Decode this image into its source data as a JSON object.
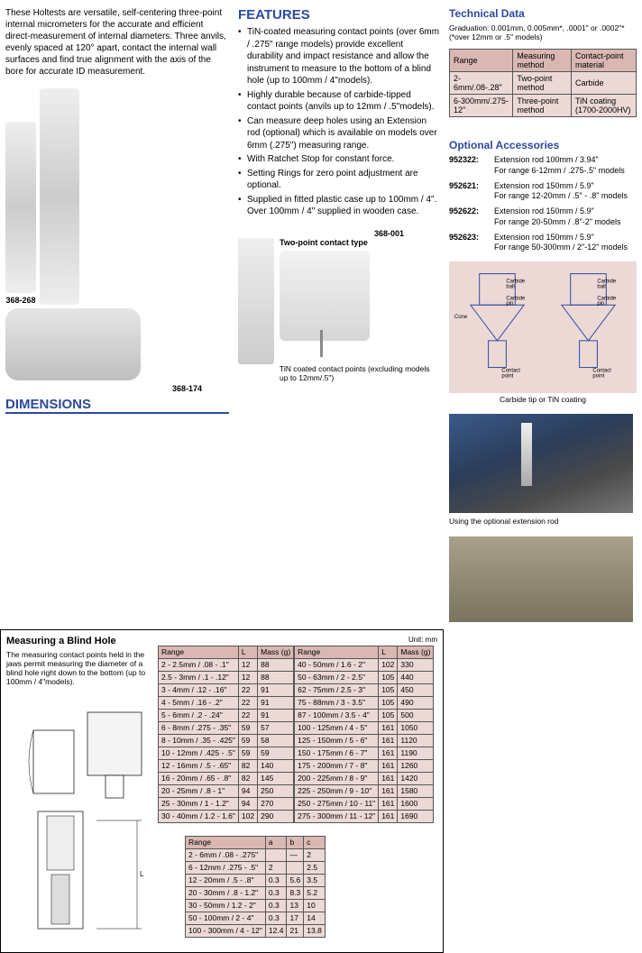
{
  "intro": "These Holtests are versatile, self-centering three-point internal micrometers for the accurate and efficient direct-measurement of internal diameters. Three anvils, evenly spaced at 120° apart, contact the internal wall surfaces and find true alignment with the axis of the bore for accurate ID measurement.",
  "labels": {
    "p1": "368-268",
    "p2": "368-174",
    "p3": "368-001",
    "tp": "Two-point contact type",
    "tin": "TiN coated contact points (excluding models up to 12mm/.5\")"
  },
  "features": {
    "hdr": "FEATURES",
    "items": [
      "TiN-coated measuring contact points (over 6mm / .275\" range models) provide excellent durability and impact resistance and allow the instrument to measure to the bottom of a blind hole (up to 100mm / 4\"models).",
      "Highly durable because of carbide-tipped contact points (anvils up to 12mm / .5\"models).",
      "Can measure deep holes using an Extension rod (optional) which is available on models over 6mm (.275\") measuring range.",
      "With Ratchet Stop for constant force.",
      "Setting Rings for zero point adjustment are optional.",
      "Supplied in fitted plastic case up to 100mm / 4\". Over 100mm / 4\" supplied in wooden case."
    ]
  },
  "dim": {
    "hdr": "DIMENSIONS",
    "title": "Measuring a Blind Hole",
    "desc": "The measuring contact points held in the jaws permit measuring the diameter of a blind hole right down to the bottom (up to 100mm / 4\"models).",
    "unit": "Unit: mm"
  },
  "table1": {
    "cols": [
      "Range",
      "L",
      "Mass (g)"
    ],
    "rowsL": [
      [
        "2 - 2.5mm / .08 - .1\"",
        "12",
        "88"
      ],
      [
        "2.5 - 3mm / .1 - .12\"",
        "12",
        "88"
      ],
      [
        "3 - 4mm / .12 - .16\"",
        "22",
        "91"
      ],
      [
        "4 - 5mm / .16 - .2\"",
        "22",
        "91"
      ],
      [
        "5 - 6mm / .2 - .24\"",
        "22",
        "91"
      ],
      [
        "6 - 8mm / .275 - .35\"",
        "59",
        "57"
      ],
      [
        "8 - 10mm / .35 - .425\"",
        "59",
        "58"
      ],
      [
        "10 - 12mm / .425 - .5\"",
        "59",
        "59"
      ],
      [
        "12 - 16mm / .5 - .65\"",
        "82",
        "140"
      ],
      [
        "16 - 20mm / .65 - .8\"",
        "82",
        "145"
      ],
      [
        "20 - 25mm / .8 - 1\"",
        "94",
        "250"
      ],
      [
        "25 - 30mm / 1 - 1.2\"",
        "94",
        "270"
      ],
      [
        "30 - 40mm / 1.2 - 1.6\"",
        "102",
        "290"
      ]
    ],
    "rowsR": [
      [
        "40 - 50mm / 1.6 - 2\"",
        "102",
        "330"
      ],
      [
        "50 - 63mm / 2 - 2.5\"",
        "105",
        "440"
      ],
      [
        "62 - 75mm / 2.5 - 3\"",
        "105",
        "450"
      ],
      [
        "75 - 88mm / 3 - 3.5\"",
        "105",
        "490"
      ],
      [
        "87 - 100mm / 3.5 - 4\"",
        "105",
        "500"
      ],
      [
        "100 - 125mm / 4 - 5\"",
        "161",
        "1050"
      ],
      [
        "125 - 150mm / 5 - 6\"",
        "161",
        "1120"
      ],
      [
        "150 - 175mm / 6 - 7\"",
        "161",
        "1190"
      ],
      [
        "175 - 200mm / 7 - 8\"",
        "161",
        "1260"
      ],
      [
        "200 - 225mm / 8 - 9\"",
        "161",
        "1420"
      ],
      [
        "225 - 250mm / 9 - 10\"",
        "161",
        "1580"
      ],
      [
        "250 - 275mm / 10 - 11\"",
        "161",
        "1600"
      ],
      [
        "275 - 300mm / 11 - 12\"",
        "161",
        "1690"
      ]
    ]
  },
  "table2": {
    "cols": [
      "Range",
      "a",
      "b",
      "c"
    ],
    "rows": [
      [
        "2 - 6mm / .08 - .275\"",
        "",
        "—",
        "2"
      ],
      [
        "6 - 12mm / .275 - .5\"",
        "2",
        "",
        "2.5"
      ],
      [
        "12 - 20mm / .5 - .8\"",
        "0.3",
        "5.6",
        "3.5"
      ],
      [
        "20 - 30mm / .8 - 1.2\"",
        "0.3",
        "8.3",
        "5.2"
      ],
      [
        "30 - 50mm / 1.2 - 2\"",
        "0.3",
        "13",
        "10"
      ],
      [
        "50 - 100mm / 2 - 4\"",
        "0.3",
        "17",
        "14"
      ],
      [
        "100 - 300mm / 4 - 12\"",
        "12.4",
        "21",
        "13.8"
      ]
    ]
  },
  "tech": {
    "hdr": "Technical Data",
    "sub": "Graduation: 0.001mm, 0.005mm*, .0001\" or .0002\"* (*over 12mm or .5\" models)",
    "cols": [
      "Range",
      "Measuring method",
      "Contact-point material"
    ],
    "rows": [
      [
        "2-6mm/.08-.28\"",
        "Two-point method",
        "Carbide"
      ],
      [
        "6-300mm/.275-12\"",
        "Three-point method",
        "TiN coating (1700-2000HV)"
      ]
    ]
  },
  "acc": {
    "hdr": "Optional Accessories",
    "items": [
      {
        "pn": "952322",
        "desc": "Extension rod 100mm / 3.94\"\nFor range 6-12mm / .275-.5\" models"
      },
      {
        "pn": "952621",
        "desc": "Extension rod 150mm / 5.9\"\nFor range 12-20mm / .5\" - .8\" models"
      },
      {
        "pn": "952622",
        "desc": "Extension rod 150mm / 5.9\"\nFor range 20-50mm / .8\"-2\" models"
      },
      {
        "pn": "952623",
        "desc": "Extension rod 150mm / 5.9\"\nFor range 50-300mm / 2\"-12\" models"
      }
    ]
  },
  "diag_lbls": {
    "cb": "Carbide ball",
    "cp": "Carbide pin",
    "cone": "Cone",
    "cpt": "Contact point",
    "tip": "Carbide tip or TiN coating"
  },
  "photo_cap": "Using the optional extension rod"
}
